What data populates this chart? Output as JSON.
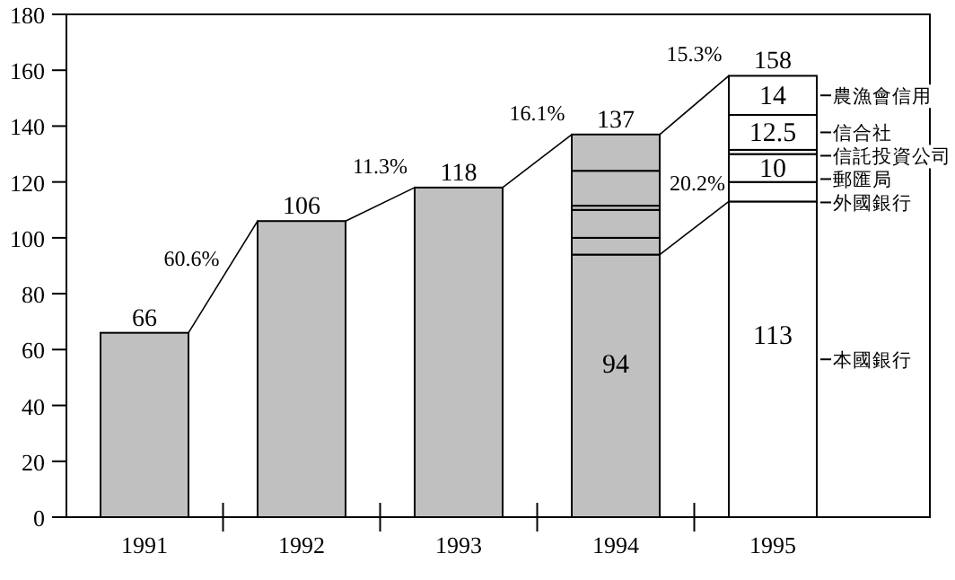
{
  "chart_data": {
    "type": "bar",
    "stacked": true,
    "categories": [
      "1991",
      "1992",
      "1993",
      "1994",
      "1995"
    ],
    "series": [
      {
        "colors": [
          "#c0c0c0",
          "#c0c0c0",
          "#c0c0c0",
          null,
          null
        ],
        "values": [
          66,
          106,
          118,
          null,
          null
        ]
      },
      {
        "name": "本國銀行",
        "colors": [
          null,
          null,
          null,
          "#c0c0c0",
          "#ffffff"
        ],
        "values": [
          null,
          null,
          null,
          94,
          113
        ],
        "value_labels": [
          null,
          null,
          null,
          "94",
          "113"
        ]
      },
      {
        "name": "外國銀行",
        "colors": [
          null,
          null,
          null,
          "#c0c0c0",
          "#ffffff"
        ],
        "values": [
          null,
          null,
          null,
          6,
          7
        ]
      },
      {
        "name": "郵匯局",
        "colors": [
          null,
          null,
          null,
          "#c0c0c0",
          "#ffffff"
        ],
        "values": [
          null,
          null,
          null,
          10,
          10
        ],
        "value_labels": [
          null,
          null,
          null,
          null,
          "10"
        ]
      },
      {
        "name": "信託投資公司",
        "colors": [
          null,
          null,
          null,
          "#c0c0c0",
          "#ffffff"
        ],
        "values": [
          null,
          null,
          null,
          1.5,
          1.5
        ]
      },
      {
        "name": "信合社",
        "colors": [
          null,
          null,
          null,
          "#c0c0c0",
          "#ffffff"
        ],
        "values": [
          null,
          null,
          null,
          12.5,
          12.5
        ],
        "value_labels": [
          null,
          null,
          null,
          null,
          "12.5"
        ]
      },
      {
        "name": "農漁會信用",
        "colors": [
          null,
          null,
          null,
          "#c0c0c0",
          "#ffffff"
        ],
        "values": [
          null,
          null,
          null,
          13,
          14
        ],
        "value_labels": [
          null,
          null,
          null,
          null,
          "14"
        ]
      }
    ],
    "totals": [
      "66",
      "106",
      "118",
      "137",
      "158"
    ],
    "annotations": [
      "60.6%",
      "11.3%",
      "16.1%",
      "15.3%",
      "20.2%"
    ],
    "ylim": [
      0,
      180
    ],
    "yticks": [
      0,
      20,
      40,
      60,
      80,
      100,
      120,
      140,
      160,
      180
    ],
    "grid": false,
    "legend": "right"
  }
}
